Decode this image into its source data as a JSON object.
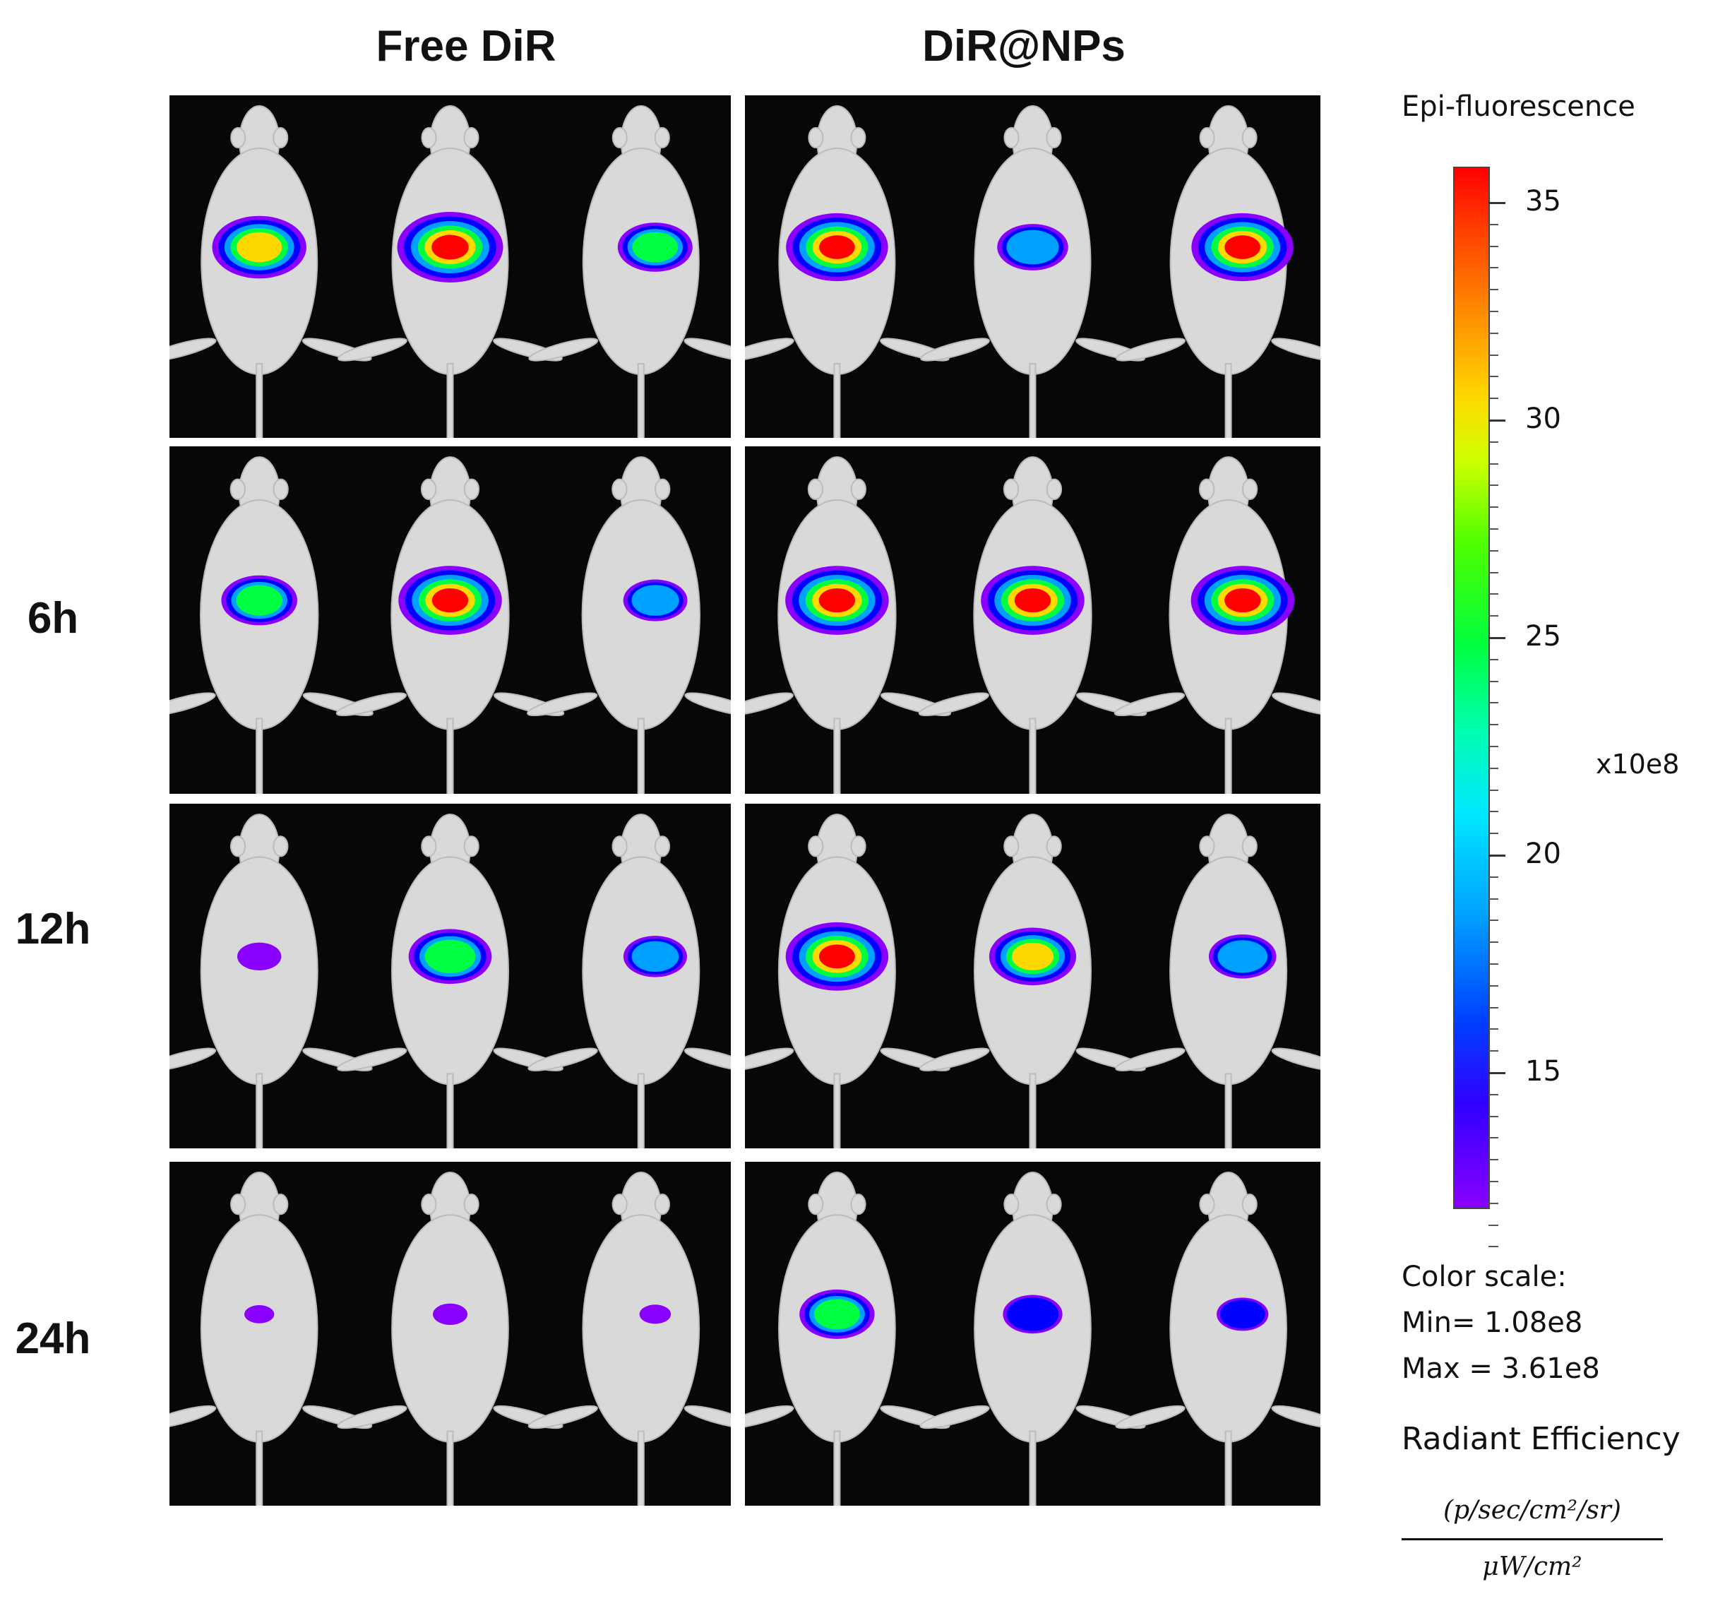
{
  "columns": [
    "Free DiR",
    "DiR@NPs"
  ],
  "rows": [
    "",
    "6h",
    "12h",
    "24h"
  ],
  "legend": {
    "title": "Epi-fluorescence",
    "ticks": [
      "35",
      "30",
      "25",
      "20",
      "15"
    ],
    "multiplier": "x10e8",
    "scale_heading": "Color scale:",
    "min_text": "Min= 1.08e8",
    "max_text": "Max = 3.61e8",
    "quantity": "Radiant Efficiency",
    "unit_numerator": "(p/sec/cm²/sr)",
    "unit_denominator": "μW/cm²"
  },
  "colors": {
    "hot": "#ff0000",
    "warm": "#ffd800",
    "mid": "#00ff40",
    "cool": "#00a0ff",
    "cold": "#0000ff",
    "low": "#8a00ff",
    "background": "#070707"
  },
  "signal_levels": [
    [
      [
        0.85,
        1.0,
        0.6
      ],
      [
        0.95,
        0.55,
        0.95
      ]
    ],
    [
      [
        0.6,
        0.95,
        0.45
      ],
      [
        0.95,
        0.95,
        0.95
      ]
    ],
    [
      [
        0.2,
        0.7,
        0.45
      ],
      [
        0.95,
        0.75,
        0.5
      ]
    ],
    [
      [
        0.02,
        0.08,
        0.04
      ],
      [
        0.6,
        0.4,
        0.3
      ]
    ]
  ]
}
